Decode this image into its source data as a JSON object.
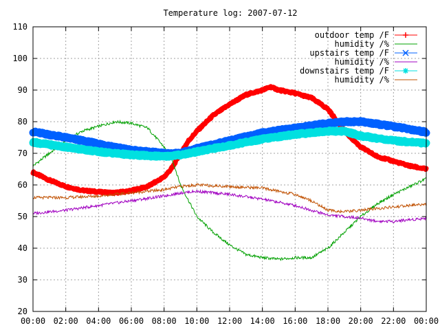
{
  "chart_data": {
    "type": "line",
    "title": "Temperature log: 2007-07-12",
    "xlabel": "",
    "ylabel": "",
    "ylim": [
      20,
      110
    ],
    "xlim": [
      0,
      24
    ],
    "grid": true,
    "legend_position": "top-right",
    "x_tick_labels": [
      "00:00",
      "02:00",
      "04:00",
      "06:00",
      "08:00",
      "10:00",
      "12:00",
      "14:00",
      "16:00",
      "18:00",
      "20:00",
      "22:00",
      "00:00"
    ],
    "y_tick_labels": [
      "20",
      "30",
      "40",
      "50",
      "60",
      "70",
      "80",
      "90",
      "100",
      "110"
    ],
    "series": [
      {
        "name": "outdoor temp /F",
        "color": "#ff0000",
        "style": "points-plus",
        "x": [
          0,
          1,
          2,
          3,
          4,
          5,
          6,
          7,
          8,
          8.5,
          9,
          9.5,
          10,
          11,
          12,
          13,
          14,
          14.5,
          15,
          16,
          17,
          18,
          19,
          20,
          21,
          22,
          23,
          24
        ],
        "y": [
          64,
          61.5,
          59.5,
          58.3,
          57.8,
          57.5,
          58.2,
          59.5,
          62.5,
          65.5,
          70,
          74,
          77,
          82,
          85.5,
          88.5,
          90,
          91,
          90,
          89,
          87.5,
          84,
          77,
          72,
          69,
          67.5,
          66,
          65
        ]
      },
      {
        "name": "humidity /%",
        "color": "#00a000",
        "style": "line",
        "x": [
          0,
          1,
          2,
          3,
          4,
          5,
          6,
          7,
          8,
          8.5,
          9,
          10,
          11,
          12,
          13,
          14,
          15,
          16,
          17,
          18,
          19,
          20,
          21,
          22,
          23,
          24
        ],
        "y": [
          66,
          70,
          74,
          77,
          78.5,
          80,
          79.5,
          78,
          72,
          68,
          60,
          50,
          45,
          41,
          38,
          37,
          36.5,
          37,
          37,
          40,
          45,
          50,
          54,
          57,
          59.5,
          62
        ]
      },
      {
        "name": "upstairs temp /F",
        "color": "#0060ff",
        "style": "points-x",
        "x": [
          0,
          2,
          4,
          6,
          8,
          9,
          10,
          12,
          14,
          16,
          18,
          19,
          20,
          22,
          24
        ],
        "y": [
          76.8,
          75,
          73,
          71,
          70,
          70,
          71.5,
          74,
          76.5,
          78,
          79.5,
          80,
          80,
          78.5,
          76.7
        ]
      },
      {
        "name": "humidity /%",
        "color": "#a000c0",
        "style": "line",
        "x": [
          0,
          2,
          4,
          6,
          8,
          9,
          10,
          12,
          14,
          16,
          17,
          18,
          19,
          20,
          21,
          22,
          23,
          24
        ],
        "y": [
          51,
          52,
          53.5,
          55,
          56.5,
          57.5,
          58,
          57,
          55.5,
          53.5,
          52,
          50.5,
          50,
          49.5,
          48.5,
          48.5,
          49,
          49.5
        ]
      },
      {
        "name": "downstairs temp /F",
        "color": "#00e0e0",
        "style": "points-star",
        "x": [
          0,
          2,
          4,
          6,
          8,
          9,
          10,
          12,
          14,
          16,
          18,
          19,
          20,
          22,
          24
        ],
        "y": [
          73.5,
          72,
          70.5,
          69.5,
          69,
          69.5,
          70.5,
          72.5,
          74.5,
          76,
          77,
          77,
          75.5,
          74,
          73.2
        ]
      },
      {
        "name": "humidity /%",
        "color": "#c05000",
        "style": "line",
        "x": [
          0,
          2,
          4,
          6,
          8,
          9,
          10,
          12,
          14,
          16,
          17,
          18,
          19,
          20,
          22,
          24
        ],
        "y": [
          56,
          56,
          56.5,
          57.5,
          58.5,
          59.5,
          60,
          59.5,
          59,
          57,
          55,
          52,
          51.5,
          52,
          53,
          54
        ]
      }
    ]
  }
}
